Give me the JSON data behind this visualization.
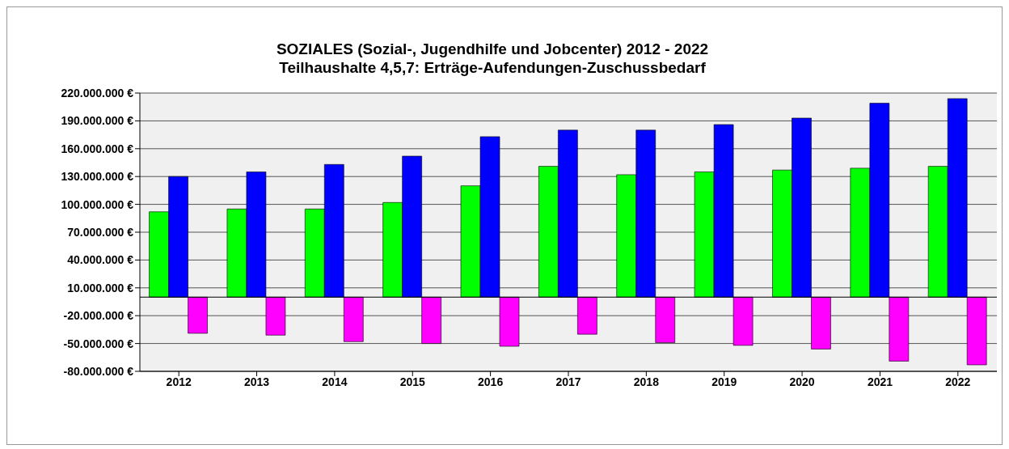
{
  "chart_data": {
    "type": "bar",
    "title": "SOZIALES  (Sozial-, Jugendhilfe und Jobcenter) 2012 - 2022",
    "subtitle": "Teilhaushalte 4,5,7: Erträge-Aufendungen-Zuschussbedarf",
    "categories": [
      "2012",
      "2013",
      "2014",
      "2015",
      "2016",
      "2017",
      "2018",
      "2019",
      "2020",
      "2021",
      "2022"
    ],
    "series": [
      {
        "color": "#00ff00",
        "values": [
          92000000,
          95000000,
          95000000,
          102000000,
          120000000,
          141000000,
          132000000,
          135000000,
          137000000,
          139000000,
          141000000
        ]
      },
      {
        "color": "#0000ff",
        "values": [
          130000000,
          135000000,
          143000000,
          152000000,
          173000000,
          180000000,
          180000000,
          186000000,
          193000000,
          209000000,
          214000000
        ]
      },
      {
        "color": "#ff00ff",
        "values": [
          -39000000,
          -41000000,
          -48000000,
          -50000000,
          -53000000,
          -40000000,
          -49000000,
          -52000000,
          -56000000,
          -69000000,
          -73000000
        ]
      }
    ],
    "ylim": [
      -80000000,
      220000000
    ],
    "yticks": [
      {
        "value": -80000000,
        "label": "-80.000.000 €"
      },
      {
        "value": -50000000,
        "label": "-50.000.000 €"
      },
      {
        "value": -20000000,
        "label": "-20.000.000 €"
      },
      {
        "value": 10000000,
        "label": "10.000.000 €"
      },
      {
        "value": 40000000,
        "label": "40.000.000 €"
      },
      {
        "value": 70000000,
        "label": "70.000.000 €"
      },
      {
        "value": 100000000,
        "label": "100.000.000 €"
      },
      {
        "value": 130000000,
        "label": "130.000.000 €"
      },
      {
        "value": 160000000,
        "label": "160.000.000 €"
      },
      {
        "value": 190000000,
        "label": "190.000.000 €"
      },
      {
        "value": 220000000,
        "label": "220.000.000 €"
      }
    ],
    "ref_lines": [
      {
        "axis": "y",
        "value": 0,
        "color": "#000000"
      }
    ],
    "grid": "y",
    "legend": false
  }
}
